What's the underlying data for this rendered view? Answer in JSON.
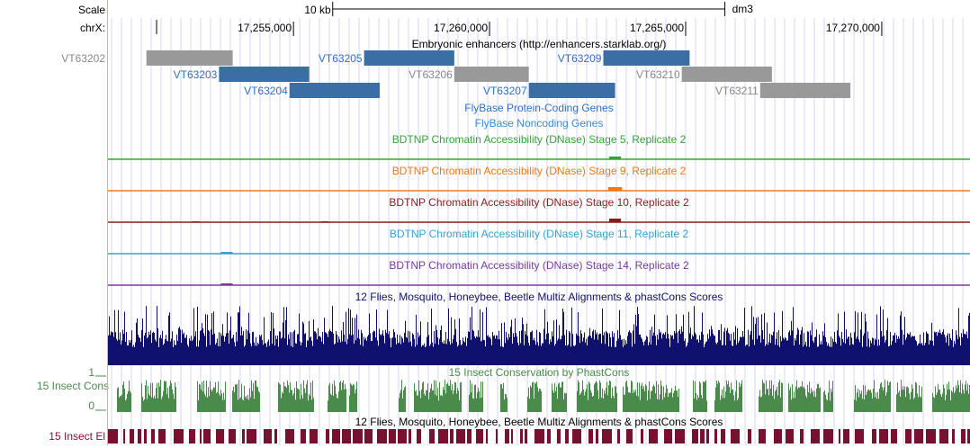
{
  "side_labels": {
    "scale": "Scale",
    "chrom": "chrX:",
    "vt_left": "VT63202",
    "cons_track": "15 Insect Cons",
    "cons_max": "1",
    "cons_min": "0",
    "el_track": "15 Insect El"
  },
  "ruler": {
    "scale_text": "10 kb",
    "assembly": "dm3",
    "ticks": [
      {
        "label": "17,255,000",
        "pos": 17255000
      },
      {
        "label": "17,260,000",
        "pos": 17260000
      },
      {
        "label": "17,265,000",
        "pos": 17265000
      },
      {
        "label": "17,270,000",
        "pos": 17270000
      }
    ]
  },
  "region": {
    "start": 17250270,
    "end": 17272250,
    "scale_start": 17256000,
    "scale_end": 17266000
  },
  "tracks": {
    "enhancers_title": "Embryonic enhancers (http://enhancers.starklab.org/)",
    "flybase_coding": "FlyBase Protein-Coding Genes",
    "flybase_noncoding": "FlyBase Noncoding Genes",
    "multiz_title": "12 Flies, Mosquito, Honeybee, Beetle Multiz Alignments & phastCons Scores",
    "phastcons_title": "15 Insect Conservation by PhastCons",
    "elements_title": "12 Flies, Mosquito, Honeybee, Beetle Multiz Alignments & phastCons Scores"
  },
  "enhancers": [
    {
      "name": "VT63202",
      "start": 17251250,
      "end": 17253450,
      "row": 0,
      "color": "#999999",
      "label_side": "outside"
    },
    {
      "name": "VT63203",
      "start": 17253100,
      "end": 17255400,
      "row": 1,
      "color": "#3a6ea5",
      "label_side": "left"
    },
    {
      "name": "VT63204",
      "start": 17254900,
      "end": 17257200,
      "row": 2,
      "color": "#3a6ea5",
      "label_side": "left"
    },
    {
      "name": "VT63205",
      "start": 17256800,
      "end": 17259100,
      "row": 0,
      "color": "#3a6ea5",
      "label_side": "left"
    },
    {
      "name": "VT63206",
      "start": 17259100,
      "end": 17261000,
      "row": 1,
      "color": "#999999",
      "label_side": "left"
    },
    {
      "name": "VT63207",
      "start": 17261000,
      "end": 17263200,
      "row": 2,
      "color": "#3a6ea5",
      "label_side": "left"
    },
    {
      "name": "VT63209",
      "start": 17262900,
      "end": 17265100,
      "row": 0,
      "color": "#3a6ea5",
      "label_side": "left"
    },
    {
      "name": "VT63210",
      "start": 17264900,
      "end": 17267200,
      "row": 1,
      "color": "#999999",
      "label_side": "left"
    },
    {
      "name": "VT63211",
      "start": 17266900,
      "end": 17269200,
      "row": 2,
      "color": "#999999",
      "label_side": "left"
    }
  ],
  "dnase_tracks": [
    {
      "title": "BDTNP Chromatin Accessibility (DNase) Stage 5, Replicate 2",
      "color": "#3aa03a"
    },
    {
      "title": "BDTNP Chromatin Accessibility (DNase) Stage 9, Replicate 2",
      "color": "#f07818"
    },
    {
      "title": "BDTNP Chromatin Accessibility (DNase) Stage 10, Replicate 2",
      "color": "#8b1a1a"
    },
    {
      "title": "BDTNP Chromatin Accessibility (DNase) Stage 11, Replicate 2",
      "color": "#3aa0d0"
    },
    {
      "title": "BDTNP Chromatin Accessibility (DNase) Stage 14, Replicate 2",
      "color": "#7a3aa0"
    }
  ],
  "colors": {
    "coding": "#2f6ec8",
    "noncoding": "#3a8ad0",
    "multiz": "#10106e",
    "phastcons": "#4a8a4a",
    "elements": "#7a1030",
    "gridline": "#d6d6f0",
    "ruler": "#000000"
  }
}
